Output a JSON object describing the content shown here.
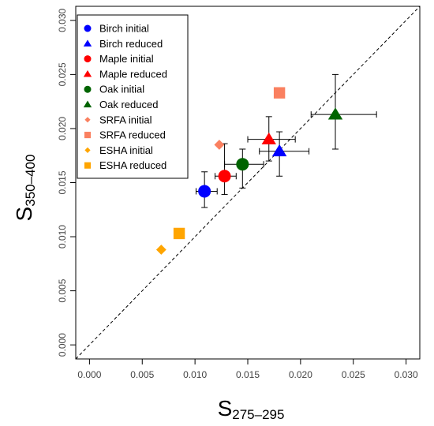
{
  "chart_data": {
    "type": "scatter",
    "xlabel": {
      "main": "S",
      "sub": "275–295"
    },
    "ylabel": {
      "main": "S",
      "sub": "350–400"
    },
    "xlim": [
      -0.0013,
      0.0313
    ],
    "ylim": [
      -0.0013,
      0.0313
    ],
    "xticks": [
      "0.000",
      "0.005",
      "0.010",
      "0.015",
      "0.020",
      "0.025",
      "0.030"
    ],
    "yticks": [
      "0.000",
      "0.005",
      "0.010",
      "0.015",
      "0.020",
      "0.025",
      "0.030"
    ],
    "reference_line": "1:1 dashed",
    "legend_position": "top-left",
    "series": [
      {
        "name": "Birch initial",
        "marker": "circle",
        "color": "#0000ff",
        "x": 0.0109,
        "y": 0.0142,
        "xerr": [
          0.0101,
          0.0121
        ],
        "yerr": [
          0.0127,
          0.016
        ]
      },
      {
        "name": "Birch reduced",
        "marker": "triangle",
        "color": "#0000ff",
        "x": 0.018,
        "y": 0.0179,
        "xerr": [
          0.0161,
          0.0208
        ],
        "yerr": [
          0.0156,
          0.0197
        ]
      },
      {
        "name": "Maple initial",
        "marker": "circle",
        "color": "#ff0000",
        "x": 0.0128,
        "y": 0.0156,
        "xerr": [
          0.0119,
          0.0139
        ],
        "yerr": [
          0.0139,
          0.0186
        ]
      },
      {
        "name": "Maple reduced",
        "marker": "triangle",
        "color": "#ff0000",
        "x": 0.017,
        "y": 0.019,
        "xerr": [
          0.015,
          0.0195
        ],
        "yerr": [
          0.017,
          0.0211
        ]
      },
      {
        "name": "Oak initial",
        "marker": "circle",
        "color": "#006400",
        "x": 0.0145,
        "y": 0.0167,
        "xerr": [
          0.0128,
          0.0165
        ],
        "yerr": [
          0.0145,
          0.0181
        ]
      },
      {
        "name": "Oak reduced",
        "marker": "triangle",
        "color": "#006400",
        "x": 0.0233,
        "y": 0.0213,
        "xerr": [
          0.021,
          0.0272
        ],
        "yerr": [
          0.0181,
          0.025
        ]
      },
      {
        "name": "SRFA initial",
        "marker": "diamond",
        "color": "#fa8060",
        "x": 0.0123,
        "y": 0.0185
      },
      {
        "name": "SRFA reduced",
        "marker": "square",
        "color": "#fa8060",
        "x": 0.018,
        "y": 0.0233
      },
      {
        "name": "ESHA initial",
        "marker": "diamond",
        "color": "#ffa500",
        "x": 0.0068,
        "y": 0.0088
      },
      {
        "name": "ESHA reduced",
        "marker": "square",
        "color": "#ffa500",
        "x": 0.0085,
        "y": 0.0103
      }
    ]
  }
}
